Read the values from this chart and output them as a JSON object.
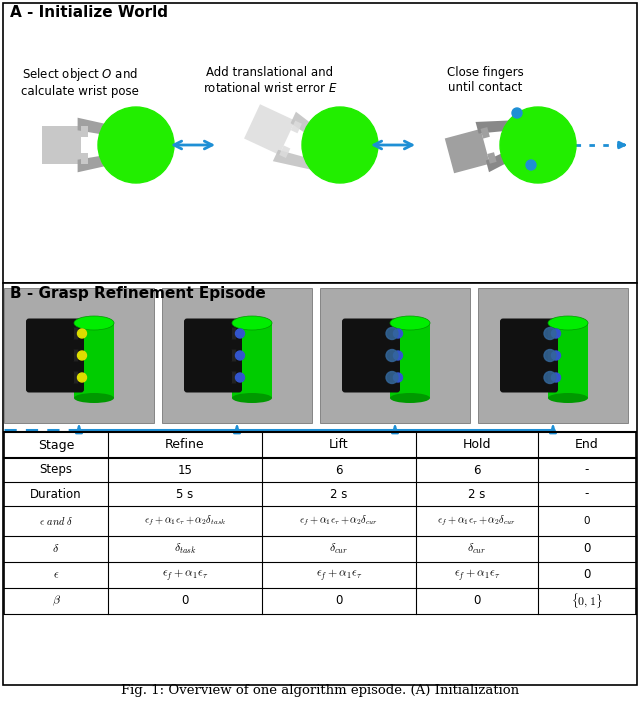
{
  "title_A": "A - Initialize World",
  "title_B": "B - Grasp Refinement Episode",
  "caption": "Fig. 1: Overview of one algorithm episode. (A) Initialization",
  "section_A_texts": [
    "Select object $O$ and\ncalculate wrist pose",
    "Add translational and\nrotational wrist error $E$",
    "Close fingers\nuntil contact"
  ],
  "arrow_color": "#1E8FD5",
  "table_headers": [
    "Stage",
    "Refine",
    "Lift",
    "Hold",
    "End"
  ],
  "table_rows": [
    [
      "Steps",
      "15",
      "6",
      "6",
      "-"
    ],
    [
      "Duration",
      "5 s",
      "2 s",
      "2 s",
      "-"
    ],
    [
      "$\\epsilon$ $and$ $\\delta$",
      "$\\epsilon_f + \\alpha_1\\epsilon_\\tau + \\alpha_2\\delta_{task}$",
      "$\\epsilon_f + \\alpha_1\\epsilon_\\tau + \\alpha_2\\delta_{cur}$",
      "$\\epsilon_f + \\alpha_1\\epsilon_\\tau + \\alpha_2\\delta_{cur}$",
      "0"
    ],
    [
      "$\\delta$",
      "$\\delta_{task}$",
      "$\\delta_{cur}$",
      "$\\delta_{cur}$",
      "0"
    ],
    [
      "$\\epsilon$",
      "$\\epsilon_f + \\alpha_1\\epsilon_\\tau$",
      "$\\epsilon_f + \\alpha_1\\epsilon_\\tau$",
      "$\\epsilon_f + \\alpha_1\\epsilon_\\tau$",
      "0"
    ],
    [
      "$\\beta$",
      "0",
      "0",
      "0",
      "$\\{0,1\\}$"
    ]
  ],
  "bg_color": "#FFFFFF",
  "gray_light": "#C8C8C8",
  "gray_medium": "#A0A0A0",
  "gray_dark": "#888888",
  "gray_lighter": "#DCDCDC",
  "green_ball": "#22EE00",
  "img_bg": "#AAAAAA",
  "panel_edge": "#666666"
}
